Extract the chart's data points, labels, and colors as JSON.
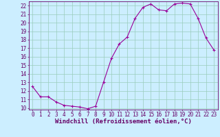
{
  "x": [
    0,
    1,
    2,
    3,
    4,
    5,
    6,
    7,
    8,
    9,
    10,
    11,
    12,
    13,
    14,
    15,
    16,
    17,
    18,
    19,
    20,
    21,
    22,
    23
  ],
  "y": [
    12.5,
    11.3,
    11.3,
    10.7,
    10.3,
    10.2,
    10.1,
    9.9,
    10.2,
    13.0,
    15.8,
    17.5,
    18.3,
    20.5,
    21.8,
    22.2,
    21.5,
    21.4,
    22.2,
    22.3,
    22.2,
    20.5,
    18.2,
    16.8
  ],
  "line_color": "#990099",
  "marker": "+",
  "bg_color": "#cceeff",
  "grid_color": "#99ccbb",
  "xlabel": "Windchill (Refroidissement éolien,°C)",
  "xlim": [
    -0.5,
    23.5
  ],
  "ylim": [
    9.8,
    22.5
  ],
  "yticks": [
    10,
    11,
    12,
    13,
    14,
    15,
    16,
    17,
    18,
    19,
    20,
    21,
    22
  ],
  "xticks": [
    0,
    1,
    2,
    3,
    4,
    5,
    6,
    7,
    8,
    9,
    10,
    11,
    12,
    13,
    14,
    15,
    16,
    17,
    18,
    19,
    20,
    21,
    22,
    23
  ],
  "tick_color": "#660066",
  "label_fontsize": 6.5,
  "tick_fontsize": 5.5
}
